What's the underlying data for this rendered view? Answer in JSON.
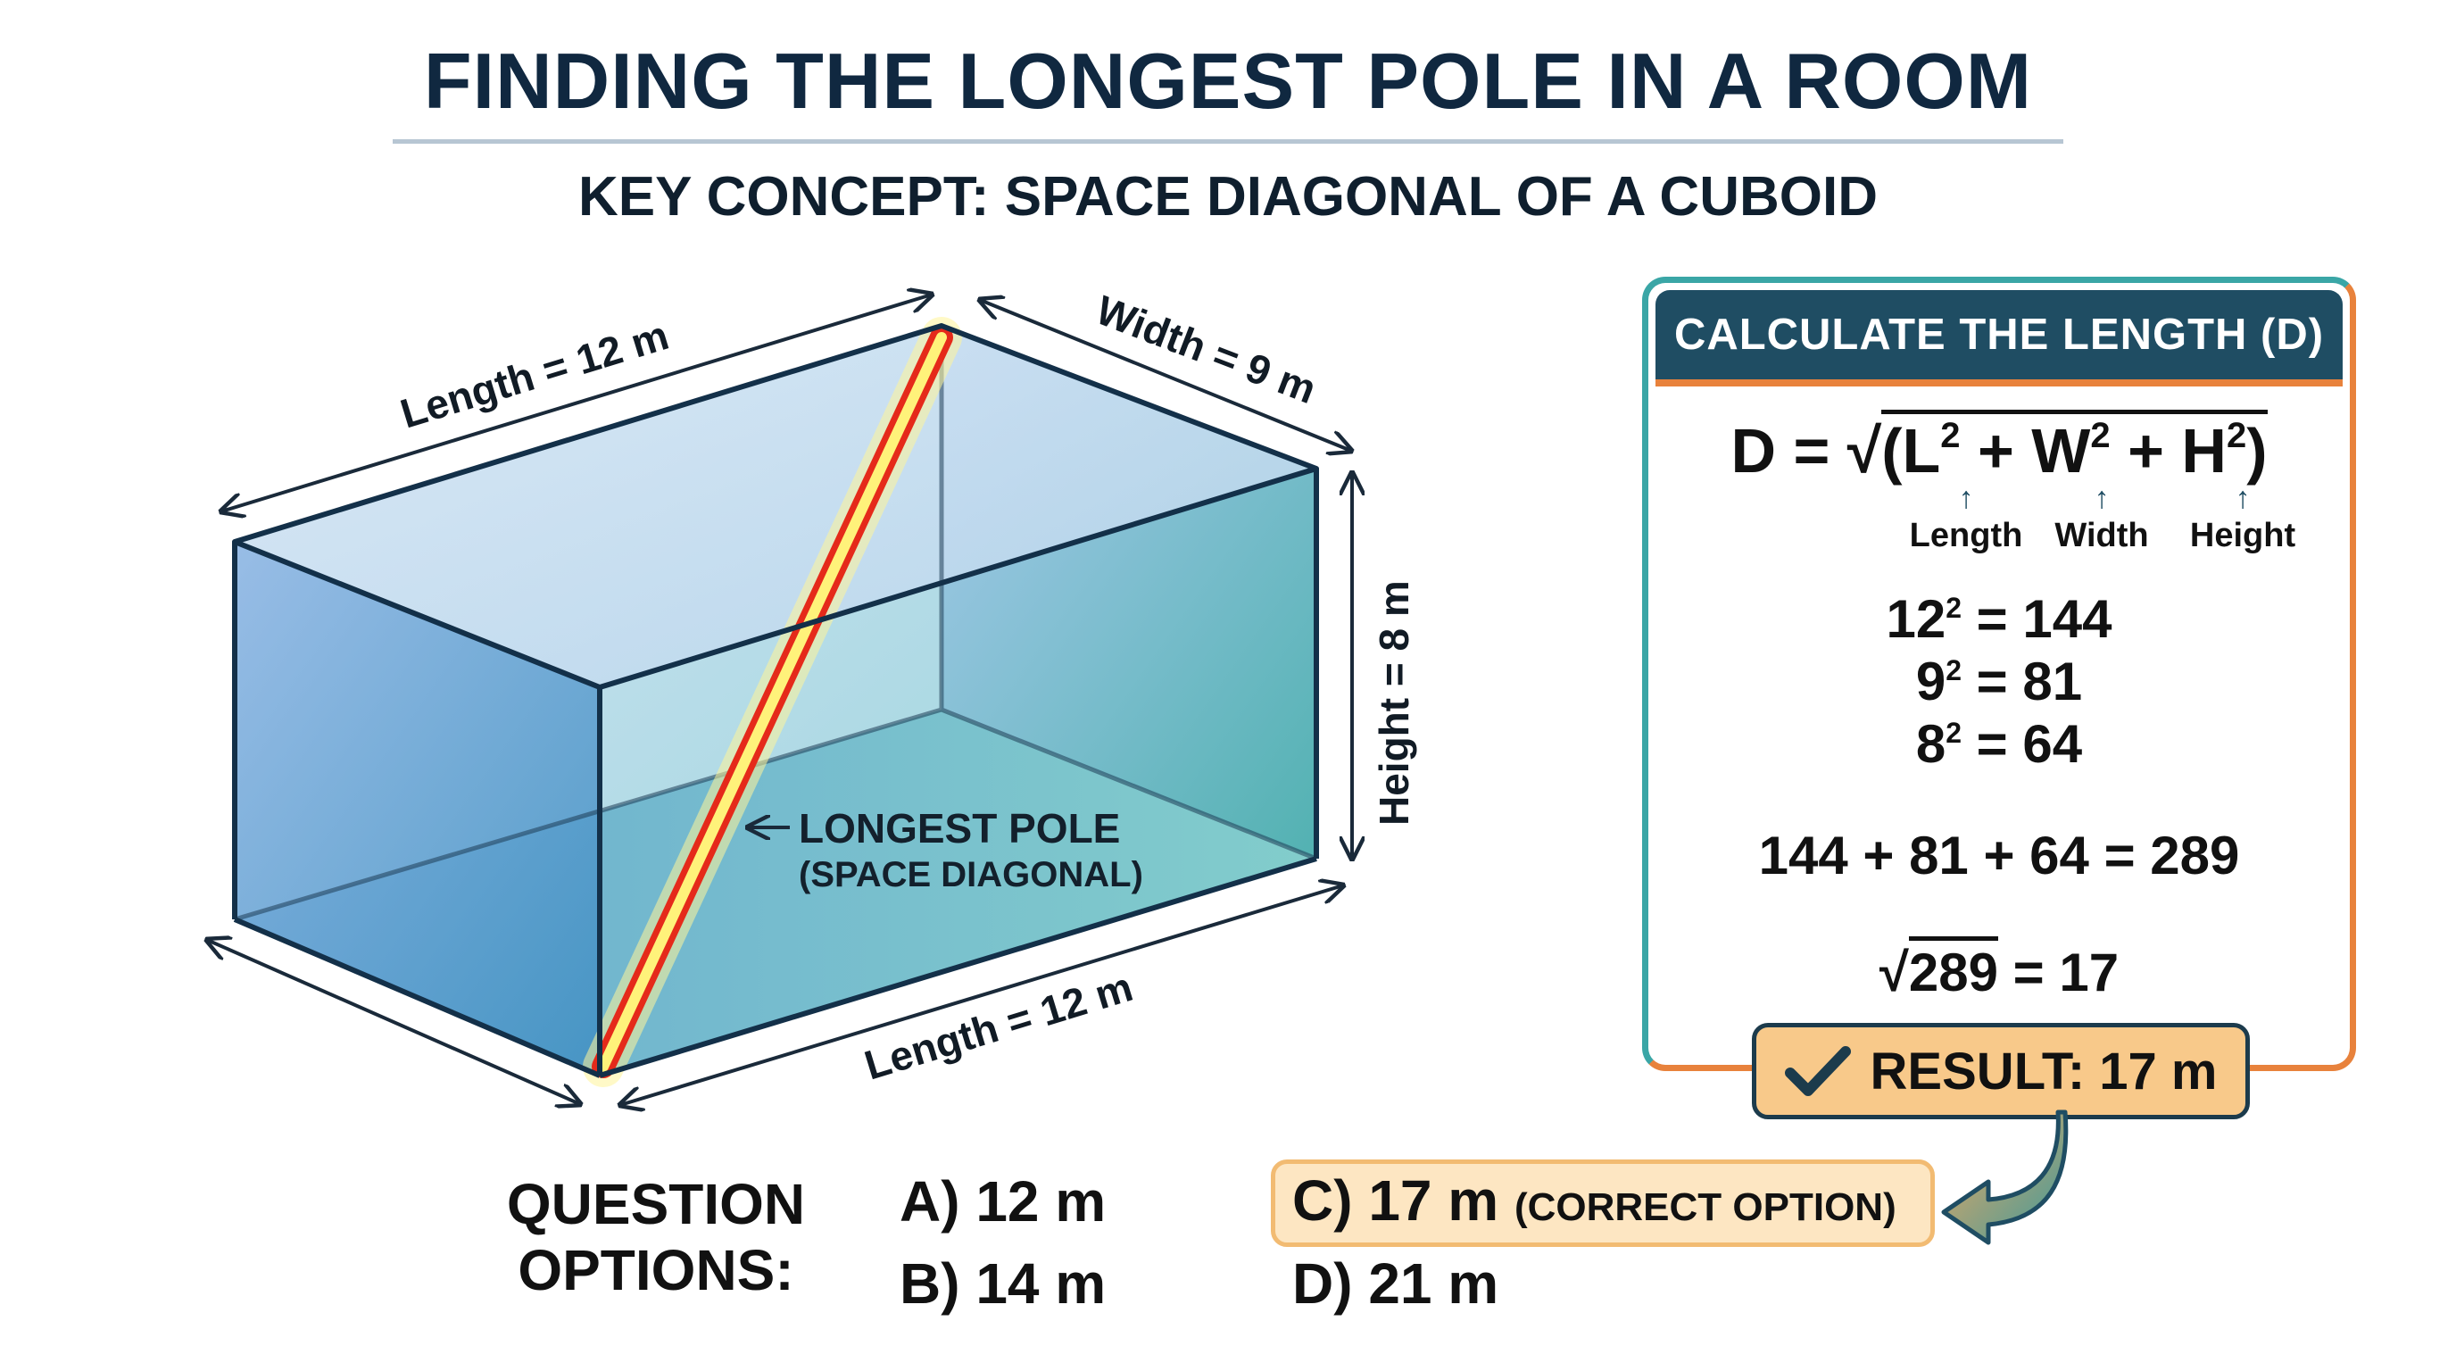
{
  "title": "FINDING THE LONGEST POLE IN A ROOM",
  "subtitle": "KEY CONCEPT: SPACE DIAGONAL OF A CUBOID",
  "diagram": {
    "length_top": "Length = 12 m",
    "width": "Width = 9 m",
    "height": "Height = 8 m",
    "length_bottom": "Length = 12 m",
    "pole_label": "LONGEST POLE",
    "pole_sublabel": "(SPACE DIAGONAL)"
  },
  "calc": {
    "header": "CALCULATE THE LENGTH (D)",
    "formula_lhs": "D = ",
    "formula_open": "(L",
    "formula_plus1": " + W",
    "formula_plus2": " + H",
    "formula_close": ")",
    "exp": "2",
    "var_labels": [
      "Length",
      "Width",
      "Height"
    ],
    "squares": [
      {
        "base": "12",
        "result": " = 144"
      },
      {
        "base": "9",
        "result": " = 81"
      },
      {
        "base": "8",
        "result": " = 64"
      }
    ],
    "sum": "144 + 81 + 64 = 289",
    "root_value": "289",
    "root_result": " = 17",
    "result": "RESULT: 17 m"
  },
  "question": {
    "label_line1": "QUESTION",
    "label_line2": "OPTIONS:",
    "options": {
      "a": "A) 12 m",
      "b": "B) 14 m",
      "c": "C) 17 m",
      "c_note": "(CORRECT OPTION)",
      "d": "D) 21 m"
    }
  },
  "colors": {
    "title": "#102840",
    "panel_header": "#1f4d63",
    "panel_border_left": "#3aa6a6",
    "panel_border_right": "#e8823c",
    "result_fill": "#f8c98a",
    "pole": "#e52a1a",
    "pole_glow": "#fff27a"
  }
}
